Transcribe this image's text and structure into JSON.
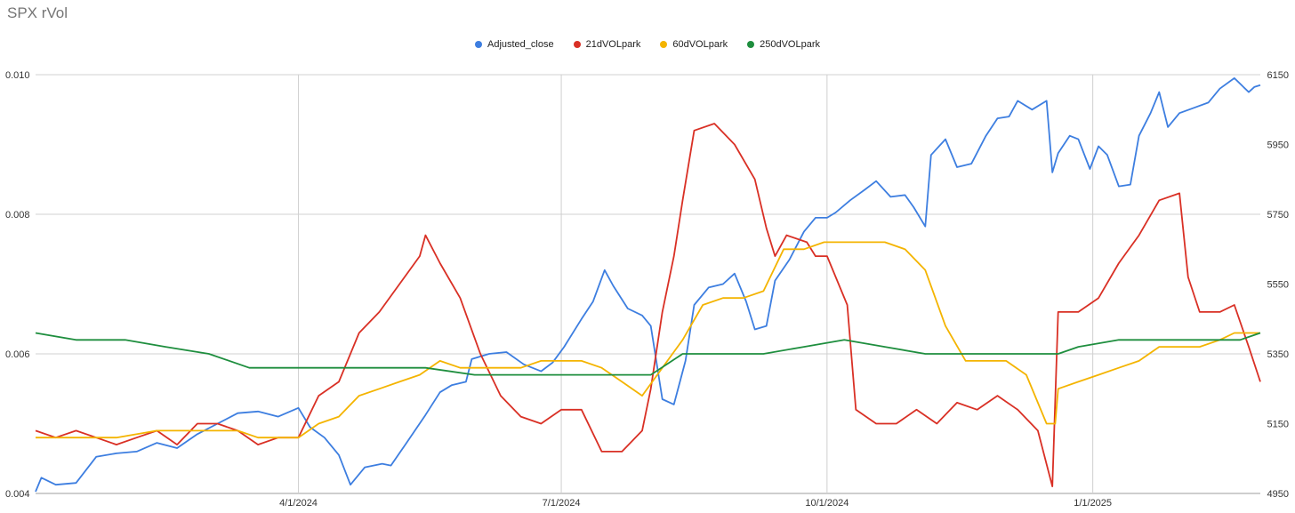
{
  "chart_data": {
    "type": "line",
    "title": "SPX rVol",
    "y_left": {
      "ticks": [
        "0.004",
        "0.006",
        "0.008",
        "0.010"
      ],
      "range": [
        0.004,
        0.01
      ]
    },
    "y_right": {
      "ticks": [
        "4950",
        "5150",
        "5350",
        "5550",
        "5750",
        "5950",
        "6150"
      ],
      "range": [
        4950,
        6150
      ]
    },
    "x_axis": {
      "start": "2024-01-01",
      "end": "2025-02-28",
      "ticks": [
        {
          "label": "4/1/2024",
          "date": "2024-04-01"
        },
        {
          "label": "7/1/2024",
          "date": "2024-07-01"
        },
        {
          "label": "10/1/2024",
          "date": "2024-10-01"
        },
        {
          "label": "1/1/2025",
          "date": "2025-01-01"
        }
      ]
    },
    "grid": true,
    "legend_position": "top",
    "series": [
      {
        "name": "Adjusted_close",
        "axis": "right",
        "color": "#3d7ee0",
        "points": [
          [
            "2024-01-01",
            4955
          ],
          [
            "2024-01-03",
            4995
          ],
          [
            "2024-01-08",
            4975
          ],
          [
            "2024-01-15",
            4980
          ],
          [
            "2024-01-22",
            5055
          ],
          [
            "2024-01-29",
            5065
          ],
          [
            "2024-02-05",
            5070
          ],
          [
            "2024-02-12",
            5095
          ],
          [
            "2024-02-19",
            5080
          ],
          [
            "2024-02-26",
            5120
          ],
          [
            "2024-03-04",
            5150
          ],
          [
            "2024-03-11",
            5180
          ],
          [
            "2024-03-18",
            5185
          ],
          [
            "2024-03-25",
            5170
          ],
          [
            "2024-04-01",
            5195
          ],
          [
            "2024-04-05",
            5140
          ],
          [
            "2024-04-10",
            5110
          ],
          [
            "2024-04-15",
            5060
          ],
          [
            "2024-04-19",
            4975
          ],
          [
            "2024-04-24",
            5025
          ],
          [
            "2024-04-30",
            5035
          ],
          [
            "2024-05-03",
            5030
          ],
          [
            "2024-05-08",
            5090
          ],
          [
            "2024-05-15",
            5175
          ],
          [
            "2024-05-20",
            5240
          ],
          [
            "2024-05-24",
            5260
          ],
          [
            "2024-05-29",
            5270
          ],
          [
            "2024-05-31",
            5335
          ],
          [
            "2024-06-06",
            5350
          ],
          [
            "2024-06-12",
            5355
          ],
          [
            "2024-06-18",
            5320
          ],
          [
            "2024-06-24",
            5300
          ],
          [
            "2024-06-28",
            5325
          ],
          [
            "2024-07-02",
            5370
          ],
          [
            "2024-07-08",
            5450
          ],
          [
            "2024-07-12",
            5500
          ],
          [
            "2024-07-16",
            5590
          ],
          [
            "2024-07-19",
            5545
          ],
          [
            "2024-07-24",
            5480
          ],
          [
            "2024-07-29",
            5460
          ],
          [
            "2024-08-01",
            5430
          ],
          [
            "2024-08-05",
            5220
          ],
          [
            "2024-08-09",
            5205
          ],
          [
            "2024-08-13",
            5330
          ],
          [
            "2024-08-16",
            5490
          ],
          [
            "2024-08-21",
            5540
          ],
          [
            "2024-08-26",
            5550
          ],
          [
            "2024-08-30",
            5580
          ],
          [
            "2024-09-03",
            5500
          ],
          [
            "2024-09-06",
            5420
          ],
          [
            "2024-09-10",
            5430
          ],
          [
            "2024-09-13",
            5560
          ],
          [
            "2024-09-18",
            5620
          ],
          [
            "2024-09-23",
            5700
          ],
          [
            "2024-09-27",
            5740
          ],
          [
            "2024-10-01",
            5740
          ],
          [
            "2024-10-04",
            5755
          ],
          [
            "2024-10-09",
            5790
          ],
          [
            "2024-10-14",
            5820
          ],
          [
            "2024-10-18",
            5845
          ],
          [
            "2024-10-23",
            5800
          ],
          [
            "2024-10-28",
            5805
          ],
          [
            "2024-10-31",
            5770
          ],
          [
            "2024-11-04",
            5715
          ],
          [
            "2024-11-06",
            5920
          ],
          [
            "2024-11-11",
            5965
          ],
          [
            "2024-11-15",
            5885
          ],
          [
            "2024-11-20",
            5895
          ],
          [
            "2024-11-25",
            5975
          ],
          [
            "2024-11-29",
            6025
          ],
          [
            "2024-12-03",
            6030
          ],
          [
            "2024-12-06",
            6075
          ],
          [
            "2024-12-11",
            6050
          ],
          [
            "2024-12-16",
            6075
          ],
          [
            "2024-12-18",
            5870
          ],
          [
            "2024-12-20",
            5925
          ],
          [
            "2024-12-24",
            5975
          ],
          [
            "2024-12-27",
            5965
          ],
          [
            "2024-12-31",
            5880
          ],
          [
            "2025-01-03",
            5945
          ],
          [
            "2025-01-06",
            5920
          ],
          [
            "2025-01-10",
            5830
          ],
          [
            "2025-01-14",
            5835
          ],
          [
            "2025-01-17",
            5975
          ],
          [
            "2025-01-21",
            6040
          ],
          [
            "2025-01-24",
            6100
          ],
          [
            "2025-01-27",
            6000
          ],
          [
            "2025-01-31",
            6040
          ],
          [
            "2025-02-05",
            6055
          ],
          [
            "2025-02-10",
            6070
          ],
          [
            "2025-02-14",
            6110
          ],
          [
            "2025-02-19",
            6140
          ],
          [
            "2025-02-24",
            6100
          ],
          [
            "2025-02-26",
            6115
          ],
          [
            "2025-02-28",
            6120
          ]
        ]
      },
      {
        "name": "21dVOLpark",
        "axis": "left",
        "color": "#d93025",
        "points": [
          [
            "2024-01-01",
            0.0049
          ],
          [
            "2024-01-08",
            0.0048
          ],
          [
            "2024-01-15",
            0.0049
          ],
          [
            "2024-01-22",
            0.0048
          ],
          [
            "2024-01-29",
            0.0047
          ],
          [
            "2024-02-05",
            0.0048
          ],
          [
            "2024-02-12",
            0.0049
          ],
          [
            "2024-02-19",
            0.0047
          ],
          [
            "2024-02-26",
            0.005
          ],
          [
            "2024-03-04",
            0.005
          ],
          [
            "2024-03-11",
            0.0049
          ],
          [
            "2024-03-18",
            0.0047
          ],
          [
            "2024-03-25",
            0.0048
          ],
          [
            "2024-04-01",
            0.0048
          ],
          [
            "2024-04-08",
            0.0054
          ],
          [
            "2024-04-15",
            0.0056
          ],
          [
            "2024-04-22",
            0.0063
          ],
          [
            "2024-04-29",
            0.0066
          ],
          [
            "2024-05-06",
            0.007
          ],
          [
            "2024-05-13",
            0.0074
          ],
          [
            "2024-05-15",
            0.0077
          ],
          [
            "2024-05-20",
            0.0073
          ],
          [
            "2024-05-27",
            0.0068
          ],
          [
            "2024-06-03",
            0.006
          ],
          [
            "2024-06-10",
            0.0054
          ],
          [
            "2024-06-17",
            0.0051
          ],
          [
            "2024-06-24",
            0.005
          ],
          [
            "2024-07-01",
            0.0052
          ],
          [
            "2024-07-08",
            0.0052
          ],
          [
            "2024-07-15",
            0.0046
          ],
          [
            "2024-07-22",
            0.0046
          ],
          [
            "2024-07-29",
            0.0049
          ],
          [
            "2024-08-01",
            0.0055
          ],
          [
            "2024-08-05",
            0.0066
          ],
          [
            "2024-08-09",
            0.0074
          ],
          [
            "2024-08-12",
            0.0082
          ],
          [
            "2024-08-16",
            0.0092
          ],
          [
            "2024-08-23",
            0.0093
          ],
          [
            "2024-08-30",
            0.009
          ],
          [
            "2024-09-06",
            0.0085
          ],
          [
            "2024-09-10",
            0.0078
          ],
          [
            "2024-09-13",
            0.0074
          ],
          [
            "2024-09-17",
            0.0077
          ],
          [
            "2024-09-24",
            0.0076
          ],
          [
            "2024-09-27",
            0.0074
          ],
          [
            "2024-10-01",
            0.0074
          ],
          [
            "2024-10-08",
            0.0067
          ],
          [
            "2024-10-11",
            0.0052
          ],
          [
            "2024-10-18",
            0.005
          ],
          [
            "2024-10-25",
            0.005
          ],
          [
            "2024-11-01",
            0.0052
          ],
          [
            "2024-11-08",
            0.005
          ],
          [
            "2024-11-15",
            0.0053
          ],
          [
            "2024-11-22",
            0.0052
          ],
          [
            "2024-11-29",
            0.0054
          ],
          [
            "2024-12-06",
            0.0052
          ],
          [
            "2024-12-13",
            0.0049
          ],
          [
            "2024-12-18",
            0.0041
          ],
          [
            "2024-12-20",
            0.0066
          ],
          [
            "2024-12-27",
            0.0066
          ],
          [
            "2025-01-03",
            0.0068
          ],
          [
            "2025-01-10",
            0.0073
          ],
          [
            "2025-01-17",
            0.0077
          ],
          [
            "2025-01-24",
            0.0082
          ],
          [
            "2025-01-31",
            0.0083
          ],
          [
            "2025-02-03",
            0.0071
          ],
          [
            "2025-02-07",
            0.0066
          ],
          [
            "2025-02-14",
            0.0066
          ],
          [
            "2025-02-19",
            0.0067
          ],
          [
            "2025-02-24",
            0.0061
          ],
          [
            "2025-02-28",
            0.0056
          ]
        ]
      },
      {
        "name": "60dVOLpark",
        "axis": "left",
        "color": "#f4b400",
        "points": [
          [
            "2024-01-01",
            0.0048
          ],
          [
            "2024-01-15",
            0.0048
          ],
          [
            "2024-01-29",
            0.0048
          ],
          [
            "2024-02-12",
            0.0049
          ],
          [
            "2024-02-26",
            0.0049
          ],
          [
            "2024-03-11",
            0.0049
          ],
          [
            "2024-03-18",
            0.0048
          ],
          [
            "2024-03-25",
            0.0048
          ],
          [
            "2024-04-01",
            0.0048
          ],
          [
            "2024-04-08",
            0.005
          ],
          [
            "2024-04-15",
            0.0051
          ],
          [
            "2024-04-22",
            0.0054
          ],
          [
            "2024-04-29",
            0.0055
          ],
          [
            "2024-05-06",
            0.0056
          ],
          [
            "2024-05-13",
            0.0057
          ],
          [
            "2024-05-20",
            0.0059
          ],
          [
            "2024-05-27",
            0.0058
          ],
          [
            "2024-06-03",
            0.0058
          ],
          [
            "2024-06-10",
            0.0058
          ],
          [
            "2024-06-17",
            0.0058
          ],
          [
            "2024-06-24",
            0.0059
          ],
          [
            "2024-07-01",
            0.0059
          ],
          [
            "2024-07-08",
            0.0059
          ],
          [
            "2024-07-15",
            0.0058
          ],
          [
            "2024-07-22",
            0.0056
          ],
          [
            "2024-07-29",
            0.0054
          ],
          [
            "2024-08-05",
            0.0058
          ],
          [
            "2024-08-12",
            0.0062
          ],
          [
            "2024-08-19",
            0.0067
          ],
          [
            "2024-08-26",
            0.0068
          ],
          [
            "2024-09-02",
            0.0068
          ],
          [
            "2024-09-09",
            0.0069
          ],
          [
            "2024-09-16",
            0.0075
          ],
          [
            "2024-09-23",
            0.0075
          ],
          [
            "2024-09-30",
            0.0076
          ],
          [
            "2024-10-07",
            0.0076
          ],
          [
            "2024-10-14",
            0.0076
          ],
          [
            "2024-10-21",
            0.0076
          ],
          [
            "2024-10-28",
            0.0075
          ],
          [
            "2024-11-04",
            0.0072
          ],
          [
            "2024-11-11",
            0.0064
          ],
          [
            "2024-11-18",
            0.0059
          ],
          [
            "2024-11-25",
            0.0059
          ],
          [
            "2024-12-02",
            0.0059
          ],
          [
            "2024-12-09",
            0.0057
          ],
          [
            "2024-12-16",
            0.005
          ],
          [
            "2024-12-19",
            0.005
          ],
          [
            "2024-12-20",
            0.0055
          ],
          [
            "2024-12-27",
            0.0056
          ],
          [
            "2025-01-03",
            0.0057
          ],
          [
            "2025-01-10",
            0.0058
          ],
          [
            "2025-01-17",
            0.0059
          ],
          [
            "2025-01-24",
            0.0061
          ],
          [
            "2025-01-31",
            0.0061
          ],
          [
            "2025-02-07",
            0.0061
          ],
          [
            "2025-02-14",
            0.0062
          ],
          [
            "2025-02-19",
            0.0063
          ],
          [
            "2025-02-24",
            0.0063
          ],
          [
            "2025-02-28",
            0.0063
          ]
        ]
      },
      {
        "name": "250dVOLpark",
        "axis": "left",
        "color": "#1e8e3e",
        "points": [
          [
            "2024-01-01",
            0.0063
          ],
          [
            "2024-01-15",
            0.0062
          ],
          [
            "2024-02-01",
            0.0062
          ],
          [
            "2024-02-15",
            0.0061
          ],
          [
            "2024-03-01",
            0.006
          ],
          [
            "2024-03-15",
            0.0058
          ],
          [
            "2024-04-01",
            0.0058
          ],
          [
            "2024-04-15",
            0.0058
          ],
          [
            "2024-05-01",
            0.0058
          ],
          [
            "2024-05-15",
            0.0058
          ],
          [
            "2024-06-01",
            0.0057
          ],
          [
            "2024-06-15",
            0.0057
          ],
          [
            "2024-07-01",
            0.0057
          ],
          [
            "2024-07-15",
            0.0057
          ],
          [
            "2024-08-01",
            0.0057
          ],
          [
            "2024-08-12",
            0.006
          ],
          [
            "2024-08-26",
            0.006
          ],
          [
            "2024-09-09",
            0.006
          ],
          [
            "2024-09-23",
            0.0061
          ],
          [
            "2024-10-07",
            0.0062
          ],
          [
            "2024-10-21",
            0.0061
          ],
          [
            "2024-11-04",
            0.006
          ],
          [
            "2024-11-18",
            0.006
          ],
          [
            "2024-12-02",
            0.006
          ],
          [
            "2024-12-16",
            0.006
          ],
          [
            "2024-12-20",
            0.006
          ],
          [
            "2024-12-27",
            0.0061
          ],
          [
            "2025-01-10",
            0.0062
          ],
          [
            "2025-01-24",
            0.0062
          ],
          [
            "2025-02-07",
            0.0062
          ],
          [
            "2025-02-21",
            0.0062
          ],
          [
            "2025-02-28",
            0.0063
          ]
        ]
      }
    ]
  }
}
